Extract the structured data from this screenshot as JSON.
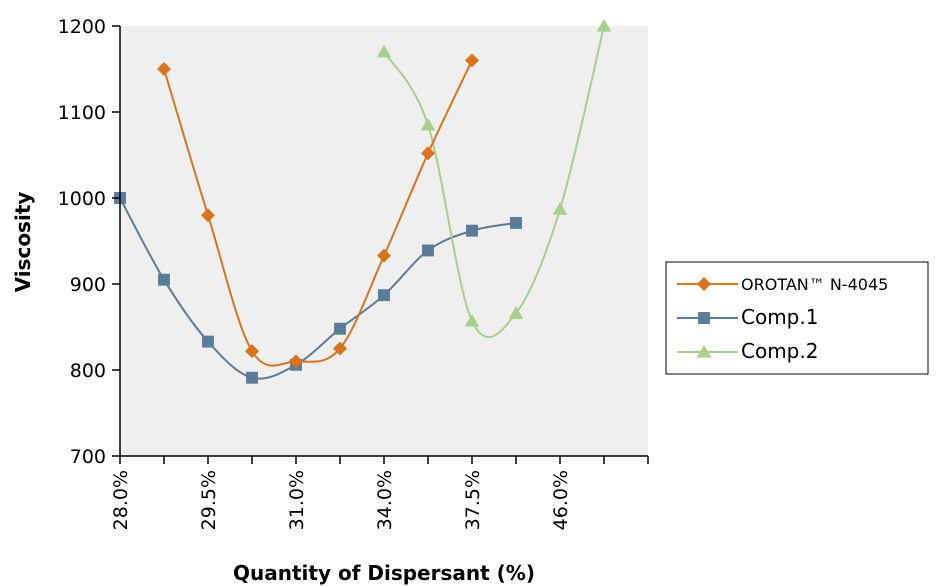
{
  "chart_data": {
    "type": "line",
    "title": "",
    "xlabel": "Quantity of Dispersant (%)",
    "ylabel": "Viscosity",
    "x_positions": 12,
    "x_tick_labels": [
      {
        "index": 0,
        "label": "28.0%"
      },
      {
        "index": 2,
        "label": "29.5%"
      },
      {
        "index": 4,
        "label": "31.0%"
      },
      {
        "index": 6,
        "label": "34.0%"
      },
      {
        "index": 8,
        "label": "37.5%"
      },
      {
        "index": 10,
        "label": "46.0%"
      }
    ],
    "ylim": [
      700,
      1200
    ],
    "y_ticks": [
      700,
      800,
      900,
      1000,
      1100,
      1200
    ],
    "grid": false,
    "plot_background": "#efefef",
    "legend_position": "right",
    "series": [
      {
        "name": "OROTAN™ N-4045",
        "color": "#d9741e",
        "marker": "diamond",
        "points": [
          [
            1,
            1150
          ],
          [
            2,
            980
          ],
          [
            3,
            822
          ],
          [
            4,
            810
          ],
          [
            5,
            825
          ],
          [
            6,
            933
          ],
          [
            7,
            1052
          ],
          [
            8,
            1160
          ]
        ]
      },
      {
        "name": "Comp.1",
        "color": "#5b7c99",
        "marker": "square",
        "points": [
          [
            0,
            1000
          ],
          [
            1,
            905
          ],
          [
            2,
            833
          ],
          [
            3,
            791
          ],
          [
            4,
            806
          ],
          [
            5,
            848
          ],
          [
            6,
            887
          ],
          [
            7,
            939
          ],
          [
            8,
            962
          ],
          [
            9,
            971
          ]
        ]
      },
      {
        "name": "Comp.2",
        "color": "#a9cf8c",
        "marker": "triangle",
        "points": [
          [
            6,
            1170
          ],
          [
            7,
            1085
          ],
          [
            8,
            857
          ],
          [
            9,
            866
          ],
          [
            10,
            987
          ],
          [
            11,
            1200
          ]
        ]
      }
    ]
  }
}
